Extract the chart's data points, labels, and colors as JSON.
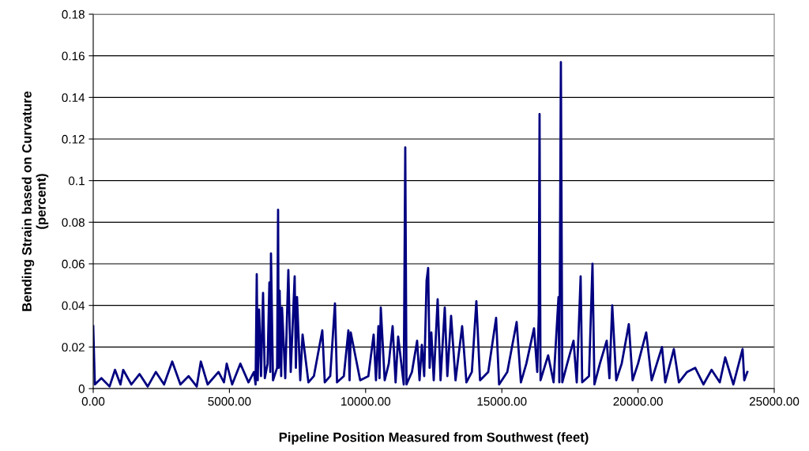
{
  "chart_data": {
    "type": "line",
    "xlabel": "Pipeline Position Measured from Southwest (feet)",
    "ylabel": "Bending Strain based on Curvature\n(percent)",
    "series": [
      {
        "color": "#000080",
        "x": [
          0,
          60,
          300,
          600,
          800,
          1000,
          1100,
          1400,
          1700,
          2000,
          2300,
          2600,
          2900,
          3200,
          3500,
          3800,
          3950,
          4200,
          4600,
          4800,
          4900,
          5100,
          5400,
          5700,
          5900,
          5960,
          6003,
          6040,
          6090,
          6160,
          6235,
          6300,
          6400,
          6467,
          6500,
          6525,
          6600,
          6750,
          6786,
          6810,
          6844,
          6900,
          6931,
          7050,
          7163,
          7250,
          7395,
          7440,
          7482,
          7600,
          7685,
          7900,
          8100,
          8410,
          8500,
          8700,
          8874,
          8950,
          9200,
          9367,
          9410,
          9454,
          9800,
          10100,
          10295,
          10380,
          10469,
          10510,
          10556,
          10700,
          10850,
          10991,
          11100,
          11194,
          11400,
          11455,
          11500,
          11700,
          11890,
          11980,
          12064,
          12150,
          12238,
          12296,
          12350,
          12412,
          12500,
          12644,
          12750,
          12905,
          13000,
          13137,
          13300,
          13543,
          13700,
          13900,
          14065,
          14200,
          14500,
          14790,
          14900,
          15200,
          15544,
          15700,
          15900,
          16182,
          16300,
          16356,
          16385,
          16420,
          16700,
          16900,
          17080,
          17110,
          17168,
          17220,
          17400,
          17632,
          17750,
          17893,
          17950,
          18200,
          18328,
          18400,
          18600,
          18850,
          18950,
          19053,
          19200,
          19400,
          19662,
          19800,
          20000,
          20300,
          20500,
          20880,
          21000,
          21315,
          21500,
          21800,
          22098,
          22400,
          22700,
          23000,
          23200,
          23500,
          23838,
          23900,
          24012
        ],
        "values": [
          0.03,
          0.002,
          0.005,
          0.001,
          0.009,
          0.002,
          0.009,
          0.002,
          0.007,
          0.001,
          0.008,
          0.002,
          0.013,
          0.002,
          0.006,
          0.001,
          0.013,
          0.002,
          0.008,
          0.003,
          0.012,
          0.002,
          0.012,
          0.003,
          0.008,
          0.002,
          0.055,
          0.004,
          0.038,
          0.006,
          0.046,
          0.005,
          0.012,
          0.051,
          0.008,
          0.065,
          0.004,
          0.01,
          0.086,
          0.01,
          0.047,
          0.006,
          0.039,
          0.005,
          0.057,
          0.008,
          0.054,
          0.01,
          0.044,
          0.004,
          0.026,
          0.003,
          0.006,
          0.028,
          0.003,
          0.006,
          0.041,
          0.003,
          0.006,
          0.028,
          0.004,
          0.027,
          0.004,
          0.006,
          0.026,
          0.004,
          0.03,
          0.005,
          0.039,
          0.004,
          0.012,
          0.03,
          0.003,
          0.025,
          0.002,
          0.116,
          0.002,
          0.008,
          0.023,
          0.004,
          0.021,
          0.006,
          0.052,
          0.058,
          0.01,
          0.027,
          0.004,
          0.043,
          0.004,
          0.039,
          0.006,
          0.035,
          0.004,
          0.03,
          0.003,
          0.008,
          0.042,
          0.004,
          0.008,
          0.034,
          0.002,
          0.008,
          0.032,
          0.003,
          0.012,
          0.029,
          0.008,
          0.036,
          0.132,
          0.004,
          0.016,
          0.003,
          0.044,
          0.003,
          0.157,
          0.003,
          0.012,
          0.023,
          0.003,
          0.054,
          0.003,
          0.006,
          0.06,
          0.002,
          0.012,
          0.023,
          0.005,
          0.04,
          0.004,
          0.012,
          0.031,
          0.004,
          0.012,
          0.027,
          0.004,
          0.02,
          0.003,
          0.019,
          0.003,
          0.008,
          0.01,
          0.002,
          0.009,
          0.003,
          0.015,
          0.002,
          0.019,
          0.004,
          0.008
        ]
      }
    ],
    "xlim": [
      0,
      25000
    ],
    "xticks": [
      {
        "value": 0,
        "label": "0.00"
      },
      {
        "value": 5000,
        "label": "5000.00"
      },
      {
        "value": 10000,
        "label": "10000.00"
      },
      {
        "value": 15000,
        "label": "15000.00"
      },
      {
        "value": 20000,
        "label": "20000.00"
      },
      {
        "value": 25000,
        "label": "25000.00"
      }
    ],
    "ylim": [
      0,
      0.18
    ],
    "yticks": [
      0,
      0.02,
      0.04,
      0.06,
      0.08,
      0.1,
      0.12,
      0.14,
      0.16,
      0.18
    ],
    "grid": "y",
    "legend": false,
    "marker": "none",
    "line_style": "solid"
  }
}
